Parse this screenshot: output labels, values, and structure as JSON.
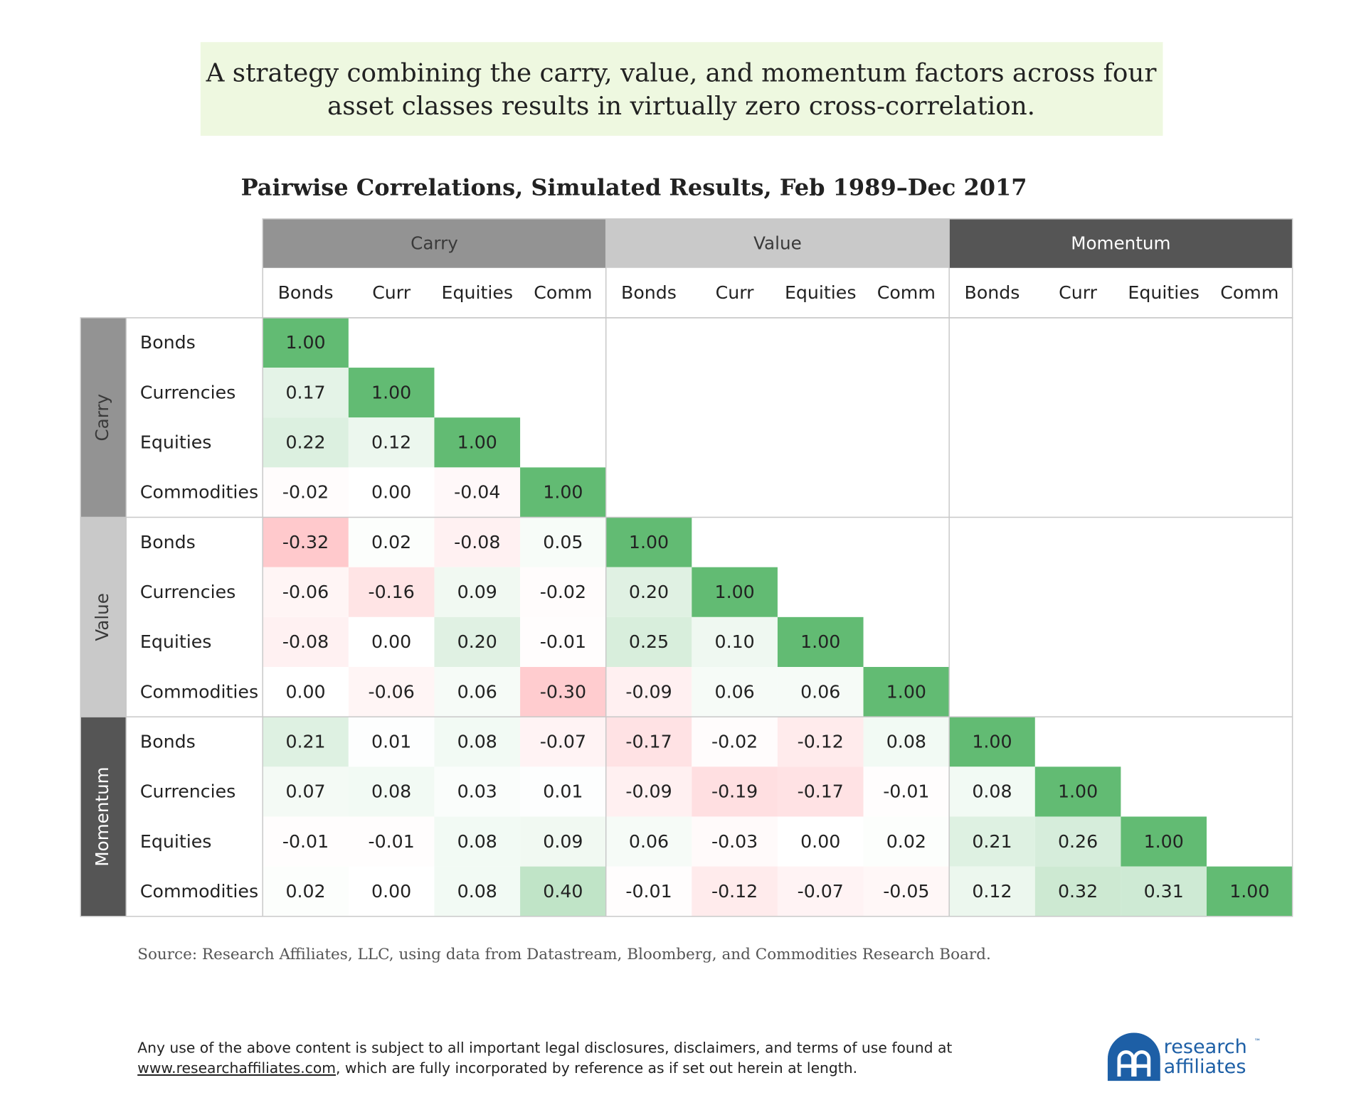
{
  "chart_data": {
    "type": "heatmap",
    "headline": [
      "A strategy combining the carry, value, and momentum factors across four",
      "asset classes results in virtually zero cross-correlation."
    ],
    "title": "Pairwise Correlations, Simulated Results, Feb 1989–Dec 2017",
    "column_groups": [
      "Carry",
      "Value",
      "Momentum"
    ],
    "row_groups": [
      "Carry",
      "Value",
      "Momentum"
    ],
    "group_colors": [
      "#939393",
      "#c9c9c9",
      "#555555"
    ],
    "group_text_colors": [
      "#3a3a3a",
      "#3a3a3a",
      "#ffffff"
    ],
    "columns": [
      "Bonds",
      "Curr",
      "Equities",
      "Comm",
      "Bonds",
      "Curr",
      "Equities",
      "Comm",
      "Bonds",
      "Curr",
      "Equities",
      "Comm"
    ],
    "rows": [
      "Bonds",
      "Currencies",
      "Equities",
      "Commodities",
      "Bonds",
      "Currencies",
      "Equities",
      "Commodities",
      "Bonds",
      "Currencies",
      "Equities",
      "Commodities"
    ],
    "values": [
      [
        1
      ],
      [
        0.17,
        1
      ],
      [
        0.22,
        0.12,
        1
      ],
      [
        -0.02,
        0,
        -0.04,
        1
      ],
      [
        -0.32,
        0.02,
        -0.08,
        0.05,
        1
      ],
      [
        -0.06,
        -0.16,
        0.09,
        -0.02,
        0.2,
        1
      ],
      [
        -0.08,
        0,
        0.2,
        -0.01,
        0.25,
        0.1,
        1
      ],
      [
        0,
        -0.06,
        0.06,
        -0.3,
        -0.09,
        0.06,
        0.06,
        1
      ],
      [
        0.21,
        0.01,
        0.08,
        -0.07,
        -0.17,
        -0.02,
        -0.12,
        0.08,
        1
      ],
      [
        0.07,
        0.08,
        0.03,
        0.01,
        -0.09,
        -0.19,
        -0.17,
        -0.01,
        0.08,
        1
      ],
      [
        -0.01,
        -0.01,
        0.08,
        0.09,
        0.06,
        -0.03,
        0,
        0.02,
        0.21,
        0.26,
        1
      ],
      [
        0.02,
        0,
        0.08,
        0.4,
        -0.01,
        -0.12,
        -0.07,
        -0.05,
        0.12,
        0.32,
        0.31,
        1
      ]
    ],
    "value_labels": [
      [
        "1.00"
      ],
      [
        "0.17",
        "1.00"
      ],
      [
        "0.22",
        "0.12",
        "1.00"
      ],
      [
        "-0.02",
        "0.00",
        "-0.04",
        "1.00"
      ],
      [
        "-0.32",
        "0.02",
        "-0.08",
        "0.05",
        "1.00"
      ],
      [
        "-0.06",
        "-0.16",
        "0.09",
        "-0.02",
        "0.20",
        "1.00"
      ],
      [
        "-0.08",
        "0.00",
        "0.20",
        "-0.01",
        "0.25",
        "0.10",
        "1.00"
      ],
      [
        "0.00",
        "-0.06",
        "0.06",
        "-0.30",
        "-0.09",
        "0.06",
        "0.06",
        "1.00"
      ],
      [
        "0.21",
        "0.01",
        "0.08",
        "-0.07",
        "-0.17",
        "-0.02",
        "-0.12",
        "0.08",
        "1.00"
      ],
      [
        "0.07",
        "0.08",
        "0.03",
        "0.01",
        "-0.09",
        "-0.19",
        "-0.17",
        "-0.01",
        "0.08",
        "1.00"
      ],
      [
        "-0.01",
        "-0.01",
        "0.08",
        "0.09",
        "0.06",
        "-0.03",
        "0.00",
        "0.02",
        "0.21",
        "0.26",
        "1.00"
      ],
      [
        "0.02",
        "0.00",
        "0.08",
        "0.40",
        "-0.01",
        "-0.12",
        "-0.07",
        "-0.05",
        "0.12",
        "0.32",
        "0.31",
        "1.00"
      ]
    ],
    "color_scale": {
      "min": -1,
      "max": 1,
      "colors": [
        "#ff565f",
        "#ffffff",
        "#62bb73"
      ]
    },
    "source": "Source: Research Affiliates, LLC, using data from Datastream, Bloomberg, and Commodities Research Board."
  },
  "footer": {
    "line1": "Any use of the above content is subject to all important legal disclosures, disclaimers, and terms of use found at",
    "link": "www.researchaffiliates.com",
    "line2": ", which are fully incorporated by reference as if set out herein at length.",
    "logo": [
      "research",
      "affiliates"
    ],
    "trademark": "™"
  }
}
